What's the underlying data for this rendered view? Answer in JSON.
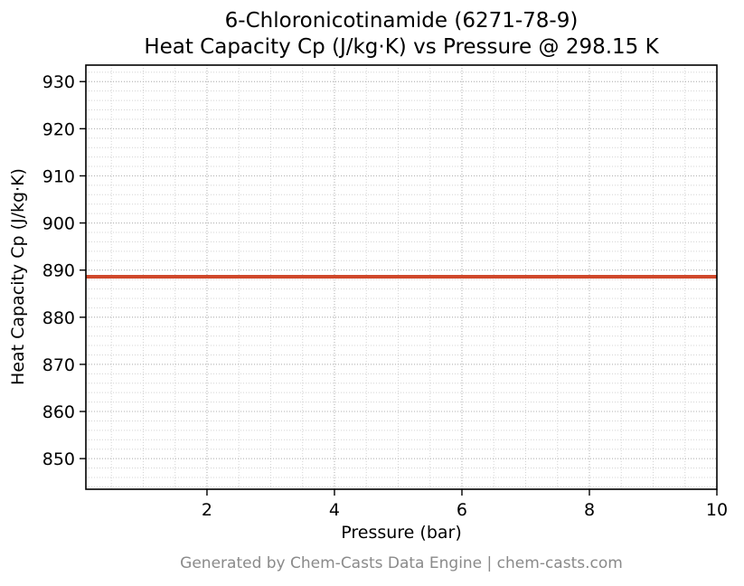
{
  "chart_data": {
    "type": "line",
    "title_line1": "6-Chloronicotinamide (6271-78-9)",
    "title_line2": "Heat Capacity Cp (J/kg·K) vs Pressure @ 298.15 K",
    "xlabel": "Pressure (bar)",
    "ylabel": "Heat Capacity Cp (J/kg·K)",
    "footer": "Generated by Chem-Casts Data Engine | chem-casts.com",
    "temperature_K": "298.15",
    "xlim": [
      0.1,
      10
    ],
    "ylim": [
      843.5,
      933.5
    ],
    "xticks": [
      2,
      4,
      6,
      8,
      10
    ],
    "yticks": [
      850,
      860,
      870,
      880,
      890,
      900,
      910,
      920,
      930
    ],
    "x_minor_step": 0.5,
    "y_minor_step": 2,
    "grid": true,
    "legend": "none",
    "series": [
      {
        "name": "Heat Capacity Cp",
        "x": [
          0.1,
          10
        ],
        "y": [
          888.6,
          888.6
        ],
        "color": "#d0482b",
        "linewidth": 4
      }
    ],
    "colors": {
      "spine": "#000000",
      "grid_major": "#b0b0b0",
      "grid_minor": "#d4d4d4",
      "footer_text": "#8a8a8a"
    }
  }
}
